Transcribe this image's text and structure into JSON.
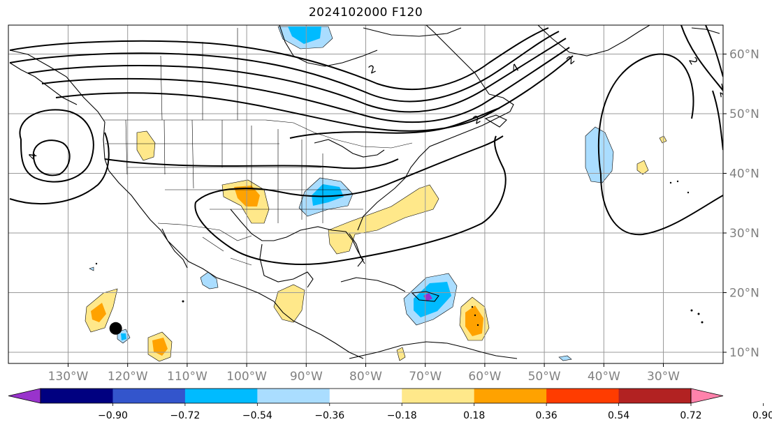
{
  "title": "2024102000 F120",
  "longitude_labels": [
    "130°W",
    "120°W",
    "110°W",
    "100°W",
    "90°W",
    "80°W",
    "70°W",
    "60°W",
    "50°W",
    "40°W",
    "30°W"
  ],
  "latitude_labels": [
    "60°N",
    "50°N",
    "40°N",
    "30°N",
    "20°N",
    "10°N"
  ],
  "colorbar": {
    "tick_labels": [
      "−0.90",
      "−0.72",
      "−0.54",
      "−0.36",
      "−0.18",
      "0.18",
      "0.36",
      "0.54",
      "0.72",
      "0.90"
    ],
    "colors": [
      "#9933cc",
      "#000080",
      "#3355cc",
      "#00bbff",
      "#aaddff",
      "#ffffff",
      "#ffe88a",
      "#ffa200",
      "#ff3c00",
      "#b22222",
      "#ff82ab"
    ]
  },
  "contour_labels": [
    "2",
    "4",
    "2",
    "4",
    "2",
    "−2",
    "2"
  ],
  "colors": {
    "light_blue": "#aaddff",
    "blue": "#00bbff",
    "yellow": "#ffe88a",
    "orange": "#ffa200",
    "purple": "#9933cc",
    "grid": "#999999",
    "contour": "#000000"
  },
  "marker": {
    "lon": -122,
    "lat": 14,
    "shape": "filled-circle"
  }
}
